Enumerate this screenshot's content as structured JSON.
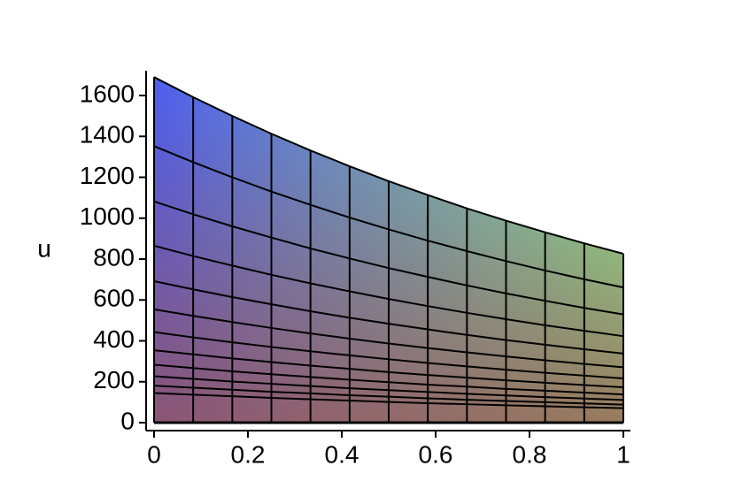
{
  "chart_data": {
    "type": "surface",
    "ylabel": "u",
    "x": [
      0,
      0.0833,
      0.1667,
      0.25,
      0.3333,
      0.4167,
      0.5,
      0.5833,
      0.6667,
      0.75,
      0.8333,
      0.9167,
      1
    ],
    "series": [
      {
        "values": [
          1690,
          1592,
          1500,
          1413,
          1331,
          1254,
          1181,
          1113,
          1048,
          988,
          931,
          877,
          826
        ]
      },
      {
        "values": [
          1352,
          1274,
          1200,
          1130,
          1065,
          1003,
          945,
          890,
          839,
          790,
          744,
          701,
          661
        ]
      },
      {
        "values": [
          1082,
          1019,
          960,
          905,
          852,
          803,
          756,
          713,
          671,
          632,
          596,
          561,
          529
        ]
      },
      {
        "values": [
          865,
          815,
          768,
          723,
          681,
          642,
          605,
          570,
          537,
          506,
          476,
          449,
          423
        ]
      },
      {
        "values": [
          692,
          652,
          614,
          579,
          545,
          513,
          484,
          456,
          429,
          404,
          381,
          359,
          338
        ]
      },
      {
        "values": [
          554,
          522,
          492,
          463,
          436,
          411,
          387,
          365,
          344,
          324,
          305,
          287,
          271
        ]
      },
      {
        "values": [
          443,
          417,
          393,
          370,
          349,
          329,
          310,
          292,
          275,
          259,
          244,
          230,
          216
        ]
      },
      {
        "values": [
          354,
          334,
          314,
          296,
          279,
          263,
          247,
          233,
          220,
          207,
          195,
          184,
          173
        ]
      },
      {
        "values": [
          283,
          267,
          251,
          237,
          223,
          210,
          198,
          186,
          176,
          165,
          156,
          147,
          138
        ]
      },
      {
        "values": [
          227,
          214,
          201,
          190,
          179,
          168,
          159,
          150,
          141,
          133,
          125,
          118,
          111
        ]
      },
      {
        "values": [
          181,
          171,
          161,
          151,
          143,
          134,
          127,
          119,
          112,
          106,
          100,
          94,
          88
        ]
      },
      {
        "values": [
          145,
          137,
          129,
          121,
          114,
          108,
          101,
          95,
          90,
          85,
          80,
          75,
          71
        ]
      }
    ],
    "xlim": [
      0,
      1
    ],
    "ylim": [
      0,
      1720
    ],
    "xticks": [
      0,
      0.2,
      0.4,
      0.6,
      0.8,
      1
    ],
    "yticks": [
      0,
      200,
      400,
      600,
      800,
      1000,
      1200,
      1400,
      1600
    ],
    "colors": {
      "left": "#4d5ef2",
      "right": "#86f49a",
      "base": "#a0524a",
      "mesh": "#000000"
    }
  }
}
